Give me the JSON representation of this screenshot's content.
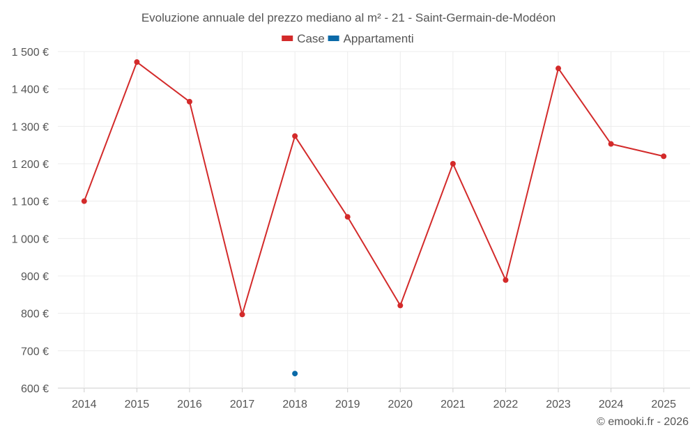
{
  "chart_data": {
    "type": "line",
    "title": "Evoluzione annuale del prezzo mediano al m² - 21 - Saint-Germain-de-Modéon",
    "categories": [
      "2014",
      "2015",
      "2016",
      "2017",
      "2018",
      "2019",
      "2020",
      "2021",
      "2022",
      "2023",
      "2024",
      "2025"
    ],
    "series": [
      {
        "name": "Case",
        "color": "#d32a2a",
        "values": [
          1100,
          1472,
          1366,
          797,
          1274,
          1058,
          821,
          1200,
          889,
          1455,
          1253,
          1220
        ]
      },
      {
        "name": "Appartamenti",
        "color": "#0a6aa8",
        "values": [
          null,
          null,
          null,
          null,
          639,
          null,
          null,
          null,
          null,
          null,
          null,
          null
        ]
      }
    ],
    "y_ticks": [
      600,
      700,
      800,
      900,
      1000,
      1100,
      1200,
      1300,
      1400,
      1500
    ],
    "y_tick_labels": [
      "600 €",
      "700 €",
      "800 €",
      "900 €",
      "1 000 €",
      "1 100 €",
      "1 200 €",
      "1 300 €",
      "1 400 €",
      "1 500 €"
    ],
    "ylim": [
      600,
      1500
    ],
    "xlabel": "",
    "ylabel": "",
    "grid": true,
    "legend_position": "top-center"
  },
  "credit": "© emooki.fr - 2026"
}
